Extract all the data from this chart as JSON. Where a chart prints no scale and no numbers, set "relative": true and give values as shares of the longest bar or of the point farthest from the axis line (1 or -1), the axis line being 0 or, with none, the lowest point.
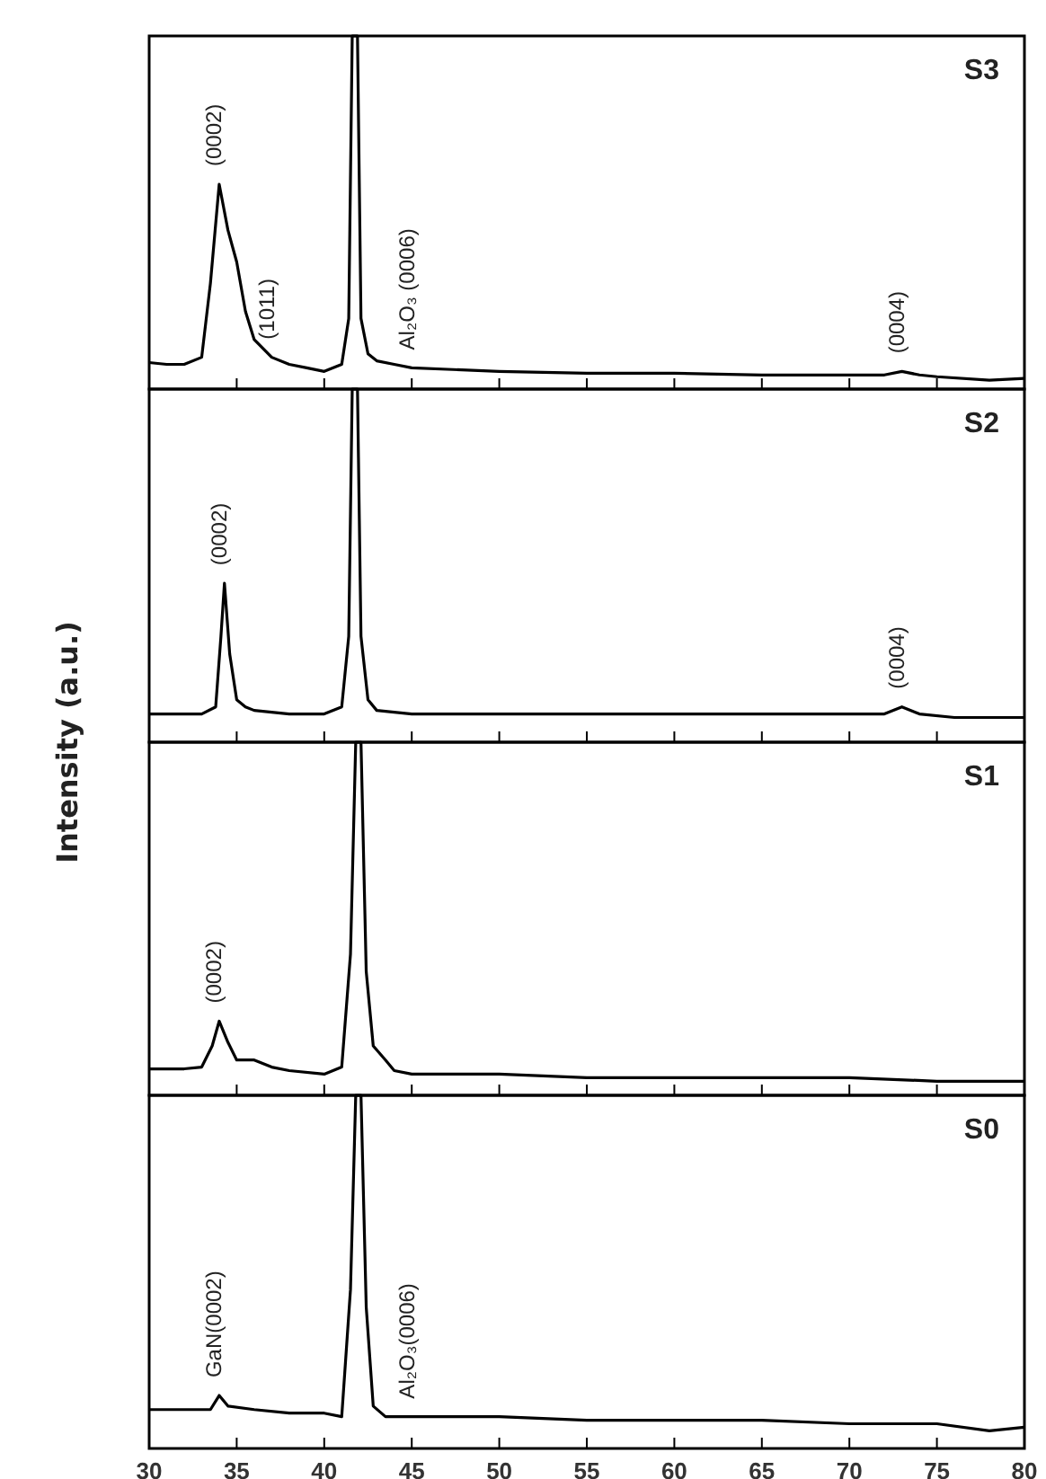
{
  "chart_data": [
    {
      "type": "line",
      "title": "S3",
      "relative": true,
      "xlim": [
        30,
        80
      ],
      "xticks": [
        30,
        35,
        40,
        45,
        50,
        55,
        60,
        65,
        70,
        75,
        80
      ],
      "tick_labels": false,
      "x": [
        30,
        31,
        32,
        33,
        33.5,
        34,
        34.5,
        35,
        35.5,
        36,
        37,
        38,
        39,
        40,
        41,
        41.4,
        41.6,
        41.9,
        42.1,
        42.5,
        43,
        44,
        45,
        50,
        55,
        60,
        65,
        70,
        72,
        73,
        74,
        75,
        78,
        80
      ],
      "series": [
        {
          "color": "#000000",
          "values": [
            0.075,
            0.07,
            0.07,
            0.09,
            0.3,
            0.58,
            0.45,
            0.36,
            0.22,
            0.14,
            0.09,
            0.07,
            0.06,
            0.05,
            0.07,
            0.2,
            1,
            1,
            0.2,
            0.1,
            0.08,
            0.07,
            0.06,
            0.05,
            0.045,
            0.045,
            0.04,
            0.04,
            0.04,
            0.05,
            0.04,
            0.035,
            0.025,
            0.03
          ]
        }
      ],
      "annotations": [
        {
          "text": "(0002)",
          "x": 34,
          "y": 0.58
        },
        {
          "text": "(1011)",
          "x": 37,
          "y": 0.09
        },
        {
          "text": "Al₂O₃ (0006)",
          "x": 45,
          "y": 0.06
        },
        {
          "text": "(0004)",
          "x": 73,
          "y": 0.05
        }
      ]
    },
    {
      "type": "line",
      "title": "S2",
      "relative": true,
      "xlim": [
        30,
        80
      ],
      "xticks": [
        30,
        35,
        40,
        45,
        50,
        55,
        60,
        65,
        70,
        75,
        80
      ],
      "tick_labels": false,
      "ylabel": "Intensity (a.u.)",
      "x": [
        30,
        32,
        33,
        33.8,
        34.1,
        34.3,
        34.6,
        35,
        35.5,
        36,
        38,
        40,
        41,
        41.4,
        41.6,
        41.9,
        42.1,
        42.5,
        43,
        45,
        50,
        55,
        60,
        65,
        70,
        72,
        73,
        74,
        76,
        80
      ],
      "series": [
        {
          "color": "#000000",
          "values": [
            0.08,
            0.08,
            0.08,
            0.1,
            0.3,
            0.45,
            0.25,
            0.12,
            0.1,
            0.09,
            0.08,
            0.08,
            0.1,
            0.3,
            1,
            1,
            0.3,
            0.12,
            0.09,
            0.08,
            0.08,
            0.08,
            0.08,
            0.08,
            0.08,
            0.08,
            0.1,
            0.08,
            0.07,
            0.07
          ]
        }
      ],
      "annotations": [
        {
          "text": "(0002)",
          "x": 34.3,
          "y": 0.45
        },
        {
          "text": "(0004)",
          "x": 73,
          "y": 0.1
        }
      ]
    },
    {
      "type": "line",
      "title": "S1",
      "relative": true,
      "xlim": [
        30,
        80
      ],
      "xticks": [
        30,
        35,
        40,
        45,
        50,
        55,
        60,
        65,
        70,
        75,
        80
      ],
      "tick_labels": false,
      "x": [
        30,
        32,
        33,
        33.6,
        34,
        34.5,
        35,
        36,
        37,
        38,
        40,
        41,
        41.5,
        41.8,
        42.1,
        42.4,
        42.8,
        43.5,
        44,
        45,
        50,
        55,
        60,
        65,
        70,
        75,
        80
      ],
      "series": [
        {
          "color": "#000000",
          "values": [
            0.075,
            0.075,
            0.08,
            0.14,
            0.21,
            0.15,
            0.1,
            0.1,
            0.08,
            0.07,
            0.06,
            0.08,
            0.4,
            1,
            1,
            0.35,
            0.14,
            0.1,
            0.07,
            0.06,
            0.06,
            0.05,
            0.05,
            0.05,
            0.05,
            0.04,
            0.04
          ]
        }
      ],
      "annotations": [
        {
          "text": "(0002)",
          "x": 34,
          "y": 0.21
        }
      ]
    },
    {
      "type": "line",
      "title": "S0",
      "relative": true,
      "xlim": [
        30,
        80
      ],
      "xticks": [
        30,
        35,
        40,
        45,
        50,
        55,
        60,
        65,
        70,
        75,
        80
      ],
      "tick_labels": "x",
      "x": [
        30,
        32,
        33.5,
        34,
        34.5,
        36,
        38,
        40,
        41,
        41.5,
        41.8,
        42.1,
        42.4,
        42.8,
        43.5,
        45,
        50,
        55,
        60,
        65,
        70,
        75,
        78,
        80
      ],
      "series": [
        {
          "color": "#000000",
          "values": [
            0.11,
            0.11,
            0.11,
            0.15,
            0.12,
            0.11,
            0.1,
            0.1,
            0.09,
            0.45,
            1,
            1,
            0.4,
            0.12,
            0.09,
            0.09,
            0.09,
            0.08,
            0.08,
            0.08,
            0.07,
            0.07,
            0.05,
            0.06
          ]
        }
      ],
      "annotations": [
        {
          "text": "GaN(0002)",
          "x": 34,
          "y": 0.15
        },
        {
          "text": "Al₂O₃(0006)",
          "x": 45,
          "y": 0.09
        }
      ]
    }
  ]
}
